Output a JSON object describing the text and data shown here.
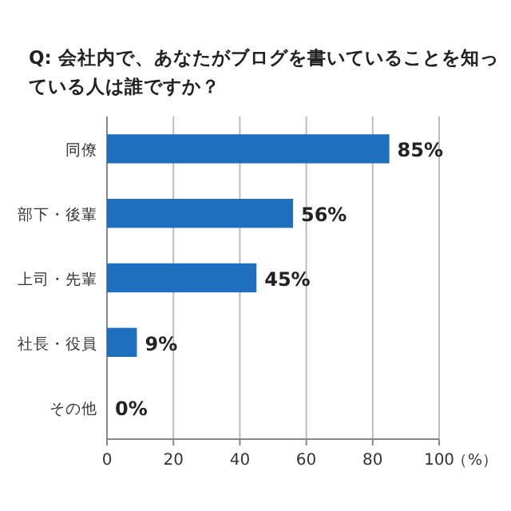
{
  "chart_data": {
    "type": "bar",
    "orientation": "horizontal",
    "title": "Q: 会社内で、あなたがブログを書いていることを知っている人は誰ですか？",
    "categories": [
      "同僚",
      "部下・後輩",
      "上司・先輩",
      "社長・役員",
      "その他"
    ],
    "values": [
      85,
      56,
      45,
      9,
      0
    ],
    "value_labels": [
      "85%",
      "56%",
      "45%",
      "9%",
      "0%"
    ],
    "color": "#1f6fbf",
    "xlim": [
      0,
      100
    ],
    "xticks": [
      0,
      20,
      40,
      60,
      80,
      100
    ],
    "xlabel": "（%）",
    "grid": "x"
  }
}
